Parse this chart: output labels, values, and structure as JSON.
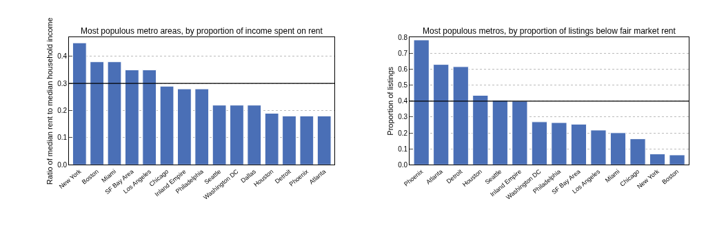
{
  "chart_data": [
    {
      "type": "bar",
      "title": "Most populous metro areas, by proportion of income spent on rent",
      "ylabel": "Ratio of median rent to median household income",
      "categories": [
        "New York",
        "Boston",
        "Miami",
        "SF Bay Area",
        "Los Angeles",
        "Chicago",
        "Inland Empire",
        "Philadelphia",
        "Seattle",
        "Washington DC",
        "Dallas",
        "Houston",
        "Detroit",
        "Phoenix",
        "Atlanta"
      ],
      "values": [
        0.45,
        0.38,
        0.38,
        0.35,
        0.35,
        0.29,
        0.28,
        0.28,
        0.22,
        0.22,
        0.22,
        0.19,
        0.18,
        0.18,
        0.18
      ],
      "color": "#4a6fb6",
      "ylim": [
        0,
        0.47
      ],
      "yticks": [
        {
          "value": 0,
          "label": "0.0"
        },
        0.1,
        0.2,
        0.3,
        0.4
      ],
      "grid": "y",
      "ref_lines": [
        {
          "axis": "y",
          "value": 0.3,
          "color": "#000000"
        }
      ]
    },
    {
      "type": "bar",
      "title": "Most populous metros, by proportion of listings below fair market rent",
      "ylabel": "Proportion of listings",
      "categories": [
        "Phoenix",
        "Atlanta",
        "Detroit",
        "Houston",
        "Seattle",
        "Inland Empire",
        "Washington DC",
        "Philadelphia",
        "SF Bay Area",
        "Los Angeles",
        "Miami",
        "Chicago",
        "New York",
        "Boston"
      ],
      "values": [
        0.784,
        0.63,
        0.616,
        0.436,
        0.404,
        0.4,
        0.27,
        0.265,
        0.255,
        0.218,
        0.201,
        0.163,
        0.068,
        0.062
      ],
      "color": "#4a6fb6",
      "ylim": [
        0,
        0.8
      ],
      "yticks": [
        {
          "value": 0,
          "label": "0.0"
        },
        0.1,
        0.2,
        0.3,
        0.4,
        0.5,
        0.6,
        0.7,
        0.8
      ],
      "grid": "y",
      "ref_lines": [
        {
          "axis": "y",
          "value": 0.4,
          "color": "#000000"
        }
      ]
    }
  ]
}
